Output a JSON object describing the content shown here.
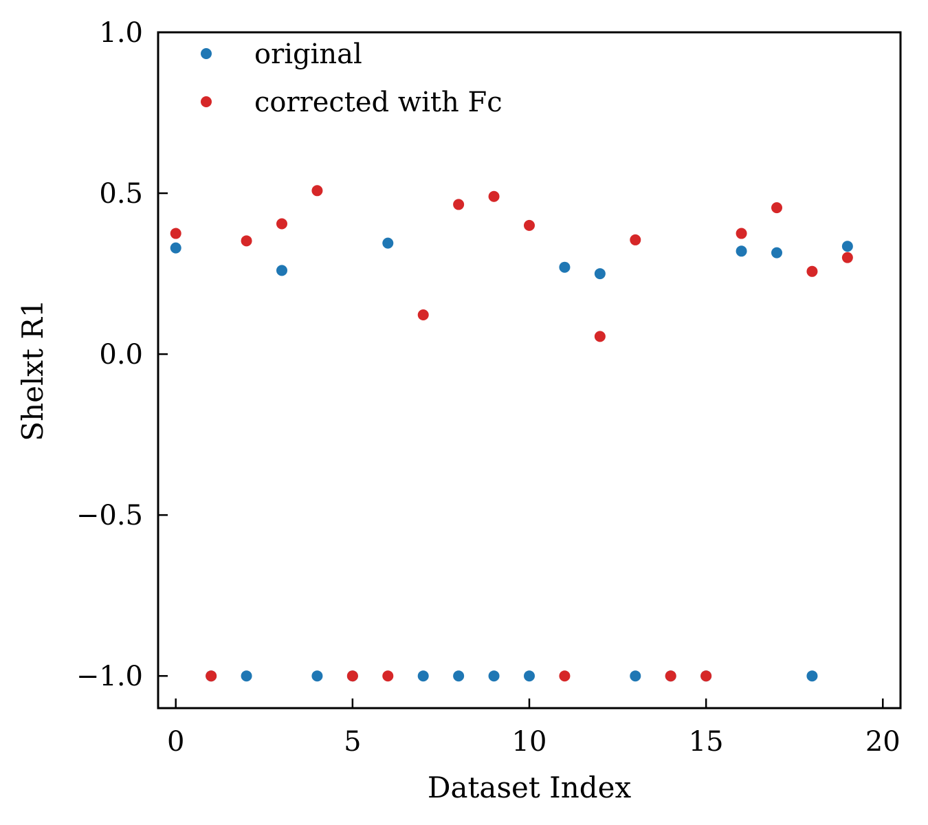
{
  "chart_data": {
    "type": "scatter",
    "xlabel": "Dataset Index",
    "ylabel": "Shelxt R1",
    "xlim": [
      -0.5,
      20.5
    ],
    "ylim": [
      -1.1,
      1.0
    ],
    "xticks": [
      0,
      5,
      10,
      15,
      20
    ],
    "xtick_labels": [
      "0",
      "5",
      "10",
      "15",
      "20"
    ],
    "yticks": [
      -1.0,
      -0.5,
      0.0,
      0.5,
      1.0
    ],
    "ytick_labels": [
      "−1.0",
      "−0.5",
      "0.0",
      "0.5",
      "1.0"
    ],
    "grid": false,
    "legend_position": "top-left",
    "series": [
      {
        "name": "original",
        "color": "#1f77b4",
        "x": [
          0,
          1,
          2,
          3,
          4,
          5,
          6,
          7,
          8,
          9,
          10,
          11,
          12,
          13,
          14,
          15,
          16,
          17,
          18,
          19
        ],
        "y": [
          0.33,
          -1.0,
          -1.0,
          0.26,
          -1.0,
          -1.0,
          0.345,
          -1.0,
          -1.0,
          -1.0,
          -1.0,
          0.27,
          0.25,
          -1.0,
          -1.0,
          -1.0,
          0.32,
          0.315,
          -1.0,
          0.335
        ]
      },
      {
        "name": "corrected with Fc",
        "color": "#d62728",
        "x": [
          0,
          1,
          2,
          3,
          4,
          5,
          6,
          7,
          8,
          9,
          10,
          11,
          12,
          13,
          14,
          15,
          16,
          17,
          18,
          19
        ],
        "y": [
          0.375,
          -1.0,
          0.352,
          0.405,
          0.508,
          -1.0,
          -1.0,
          0.122,
          0.465,
          0.49,
          0.4,
          -1.0,
          0.055,
          0.355,
          -1.0,
          -1.0,
          0.375,
          0.455,
          0.257,
          0.3
        ]
      }
    ]
  }
}
